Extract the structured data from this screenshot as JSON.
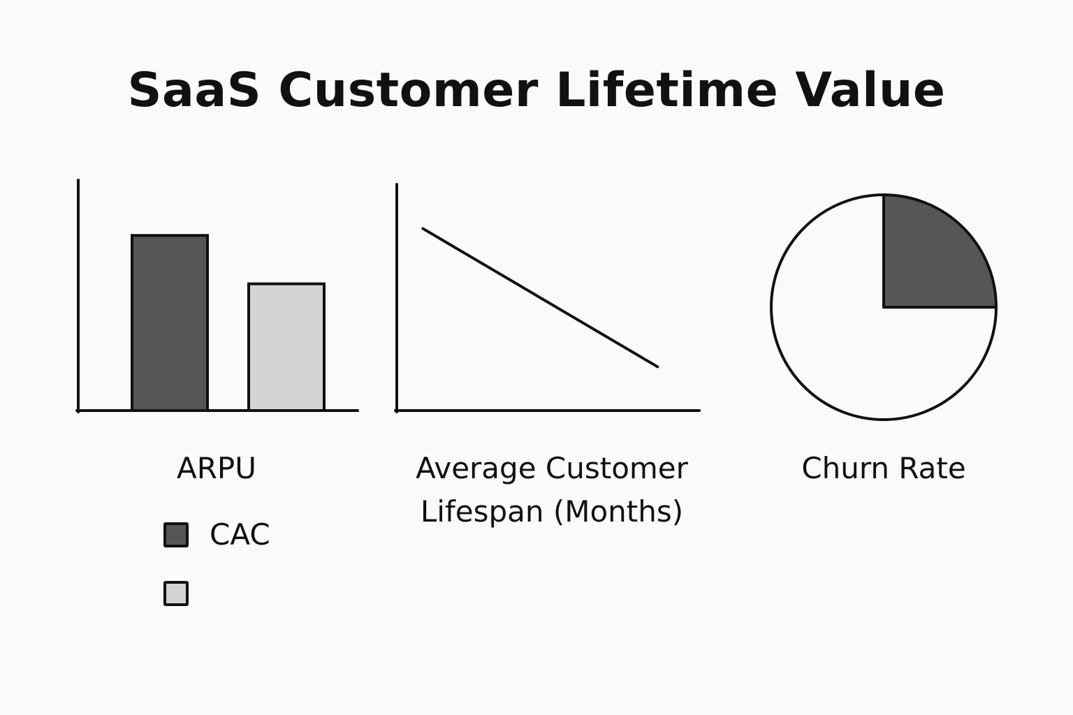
{
  "title": "SaaS Customer Lifetime Value",
  "colors": {
    "dark": "#565656",
    "light": "#d3d3d3",
    "ink": "#111111",
    "paper": "#fafaf8"
  },
  "chart_data": [
    {
      "type": "bar",
      "xlabel": "ARPU",
      "categories": [
        "",
        ""
      ],
      "values": [
        76,
        55
      ],
      "ylim": [
        0,
        100
      ],
      "bar_colors": [
        "#565656",
        "#d3d3d3"
      ],
      "legend": [
        {
          "label": "CAC",
          "color": "#565656"
        },
        {
          "label": "",
          "color": "#d3d3d3"
        }
      ],
      "legend_placement": "bottom-left",
      "grid": false
    },
    {
      "type": "line",
      "xlabel_lines": [
        "Average Customer",
        "Lifespan (Months)"
      ],
      "x": [
        1,
        10
      ],
      "y": [
        79,
        19
      ],
      "xlim": [
        0,
        11.6
      ],
      "ylim": [
        0,
        100
      ],
      "grid": false
    },
    {
      "type": "pie",
      "xlabel": "Churn Rate",
      "slices": [
        {
          "value": 25,
          "color": "#565656"
        },
        {
          "value": 75,
          "color": "#fafaf8"
        }
      ],
      "start_angle": "12 o'clock",
      "direction": "clockwise"
    }
  ]
}
